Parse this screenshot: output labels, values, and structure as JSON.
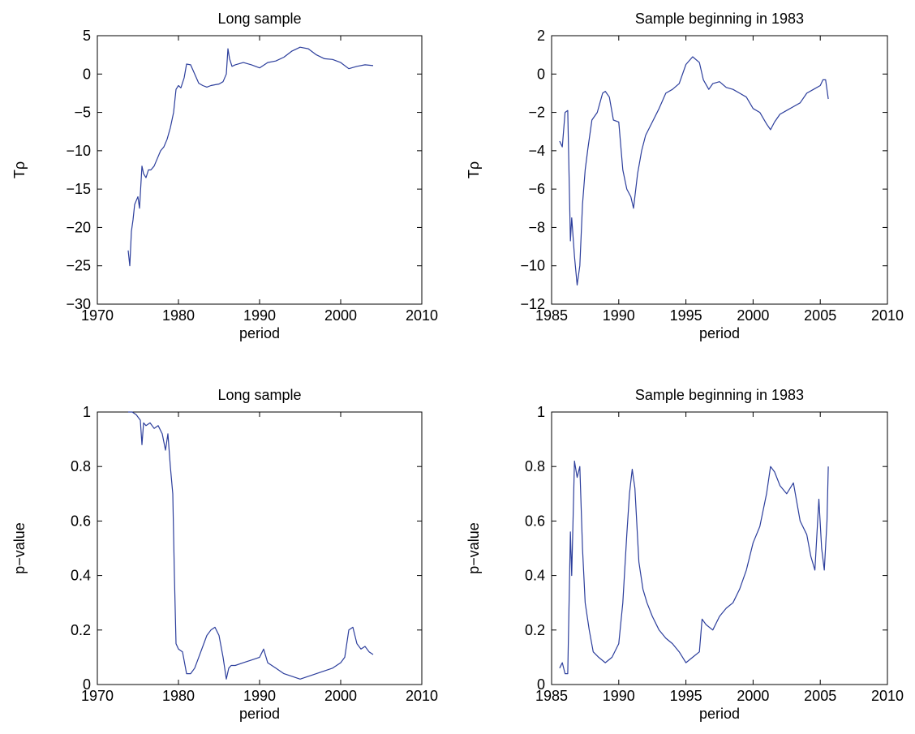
{
  "series_color": "#2c3e9c",
  "chart_data": [
    {
      "type": "line",
      "title": "Long sample",
      "xlabel": "period",
      "ylabel": "Tρ",
      "xlim": [
        1970,
        2010
      ],
      "ylim": [
        -30,
        5
      ],
      "xticks": [
        1970,
        1980,
        1990,
        2000,
        2010
      ],
      "yticks": [
        5,
        0,
        -5,
        -10,
        -15,
        -20,
        -25,
        -30
      ],
      "xtick_labels": [
        "1970",
        "1980",
        "1990",
        "2000",
        "2010"
      ],
      "ytick_labels": [
        "5",
        "0",
        "−5",
        "−10",
        "−15",
        "−20",
        "−25",
        "−30"
      ],
      "series": [
        {
          "x": [
            1973.8,
            1974.0,
            1974.2,
            1974.4,
            1974.6,
            1974.8,
            1975.0,
            1975.2,
            1975.5,
            1975.7,
            1976.0,
            1976.3,
            1976.6,
            1977.0,
            1977.4,
            1977.8,
            1978.2,
            1978.6,
            1979.0,
            1979.4,
            1979.7,
            1980.0,
            1980.3,
            1980.7,
            1981.0,
            1981.5,
            1982.0,
            1982.5,
            1983.0,
            1983.5,
            1984.0,
            1984.5,
            1985.0,
            1985.5,
            1985.9,
            1986.1,
            1986.3,
            1986.6,
            1987.0,
            1988.0,
            1989.0,
            1990.0,
            1991.0,
            1992.0,
            1993.0,
            1994.0,
            1995.0,
            1996.0,
            1997.0,
            1998.0,
            1999.0,
            2000.0,
            2001.0,
            2002.0,
            2003.0,
            2004.0
          ],
          "y": [
            -23,
            -25,
            -20.5,
            -19,
            -17,
            -16.5,
            -16,
            -17.5,
            -12,
            -13,
            -13.5,
            -12.5,
            -12.5,
            -12,
            -11,
            -10,
            -9.5,
            -8.5,
            -7,
            -5,
            -2,
            -1.5,
            -1.8,
            -0.5,
            1.3,
            1.2,
            0,
            -1.2,
            -1.5,
            -1.7,
            -1.5,
            -1.4,
            -1.3,
            -1,
            0,
            3.3,
            2,
            1,
            1.2,
            1.5,
            1.2,
            0.8,
            1.5,
            1.7,
            2.2,
            3,
            3.5,
            3.3,
            2.5,
            2,
            1.9,
            1.5,
            0.7,
            1,
            1.2,
            1.1
          ]
        }
      ]
    },
    {
      "type": "line",
      "title": "Sample beginning in 1983",
      "xlabel": "period",
      "ylabel": "Tρ",
      "xlim": [
        1985,
        2010
      ],
      "ylim": [
        -12,
        2
      ],
      "xticks": [
        1985,
        1990,
        1995,
        2000,
        2005,
        2010
      ],
      "yticks": [
        2,
        0,
        -2,
        -4,
        -6,
        -8,
        -10,
        -12
      ],
      "xtick_labels": [
        "1985",
        "1990",
        "1995",
        "2000",
        "2005",
        "2010"
      ],
      "ytick_labels": [
        "2",
        "0",
        "−2",
        "−4",
        "−6",
        "−8",
        "−10",
        "−12"
      ],
      "series": [
        {
          "x": [
            1985.6,
            1985.8,
            1986.0,
            1986.2,
            1986.4,
            1986.5,
            1986.7,
            1986.9,
            1987.1,
            1987.3,
            1987.5,
            1987.7,
            1988.0,
            1988.4,
            1988.8,
            1989.0,
            1989.3,
            1989.6,
            1990.0,
            1990.3,
            1990.6,
            1990.9,
            1991.1,
            1991.4,
            1991.7,
            1992.0,
            1992.5,
            1993.0,
            1993.5,
            1994.0,
            1994.5,
            1995.0,
            1995.5,
            1996.0,
            1996.3,
            1996.7,
            1997.0,
            1997.5,
            1998.0,
            1998.5,
            1999.0,
            1999.5,
            2000.0,
            2000.5,
            2001.0,
            2001.3,
            2001.6,
            2002.0,
            2002.5,
            2003.0,
            2003.5,
            2004.0,
            2004.5,
            2005.0,
            2005.2,
            2005.4,
            2005.6
          ],
          "y": [
            -3.5,
            -3.8,
            -2,
            -1.9,
            -8.7,
            -7.5,
            -9.5,
            -11,
            -10,
            -6.8,
            -5,
            -3.9,
            -2.4,
            -2,
            -1,
            -0.9,
            -1.2,
            -2.4,
            -2.5,
            -5,
            -6,
            -6.4,
            -7,
            -5.2,
            -4,
            -3.2,
            -2.5,
            -1.8,
            -1,
            -0.8,
            -0.5,
            0.5,
            0.9,
            0.6,
            -0.3,
            -0.8,
            -0.5,
            -0.4,
            -0.7,
            -0.8,
            -1,
            -1.2,
            -1.8,
            -2,
            -2.6,
            -2.9,
            -2.5,
            -2.1,
            -1.9,
            -1.7,
            -1.5,
            -1,
            -0.8,
            -0.6,
            -0.3,
            -0.3,
            -1.3
          ]
        }
      ]
    },
    {
      "type": "line",
      "title": "Long sample",
      "xlabel": "period",
      "ylabel": "p−value",
      "xlim": [
        1970,
        2010
      ],
      "ylim": [
        0,
        1
      ],
      "xticks": [
        1970,
        1980,
        1990,
        2000,
        2010
      ],
      "yticks": [
        1,
        0.8,
        0.6,
        0.4,
        0.2,
        0
      ],
      "xtick_labels": [
        "1970",
        "1980",
        "1990",
        "2000",
        "2010"
      ],
      "ytick_labels": [
        "1",
        "0.8",
        "0.6",
        "0.4",
        "0.2",
        "0"
      ],
      "series": [
        {
          "x": [
            1973.8,
            1974.3,
            1974.8,
            1975.3,
            1975.5,
            1975.7,
            1976.0,
            1976.5,
            1977.0,
            1977.5,
            1978.0,
            1978.4,
            1978.7,
            1979.0,
            1979.3,
            1979.5,
            1979.7,
            1980.0,
            1980.5,
            1981.0,
            1981.5,
            1982.0,
            1982.5,
            1983.0,
            1983.5,
            1984.0,
            1984.5,
            1985.0,
            1985.5,
            1985.9,
            1986.2,
            1986.5,
            1987.0,
            1988.0,
            1989.0,
            1990.0,
            1990.5,
            1991.0,
            1992.0,
            1993.0,
            1994.0,
            1995.0,
            1996.0,
            1997.0,
            1998.0,
            1999.0,
            2000.0,
            2000.5,
            2001.0,
            2001.5,
            2002.0,
            2002.5,
            2003.0,
            2003.5,
            2004.0
          ],
          "y": [
            1.0,
            1.0,
            0.99,
            0.97,
            0.88,
            0.96,
            0.95,
            0.96,
            0.94,
            0.95,
            0.92,
            0.86,
            0.92,
            0.8,
            0.7,
            0.4,
            0.15,
            0.13,
            0.12,
            0.04,
            0.04,
            0.06,
            0.1,
            0.14,
            0.18,
            0.2,
            0.21,
            0.18,
            0.1,
            0.02,
            0.06,
            0.07,
            0.07,
            0.08,
            0.09,
            0.1,
            0.13,
            0.08,
            0.06,
            0.04,
            0.03,
            0.02,
            0.03,
            0.04,
            0.05,
            0.06,
            0.08,
            0.1,
            0.2,
            0.21,
            0.15,
            0.13,
            0.14,
            0.12,
            0.11
          ]
        }
      ]
    },
    {
      "type": "line",
      "title": "Sample beginning in 1983",
      "xlabel": "period",
      "ylabel": "p−value",
      "xlim": [
        1985,
        2010
      ],
      "ylim": [
        0,
        1
      ],
      "xticks": [
        1985,
        1990,
        1995,
        2000,
        2005,
        2010
      ],
      "yticks": [
        1,
        0.8,
        0.6,
        0.4,
        0.2,
        0
      ],
      "xtick_labels": [
        "1985",
        "1990",
        "1995",
        "2000",
        "2005",
        "2010"
      ],
      "ytick_labels": [
        "1",
        "0.8",
        "0.6",
        "0.4",
        "0.2",
        "0"
      ],
      "series": [
        {
          "x": [
            1985.6,
            1985.8,
            1986.0,
            1986.2,
            1986.4,
            1986.5,
            1986.7,
            1986.9,
            1987.1,
            1987.3,
            1987.5,
            1987.8,
            1988.1,
            1988.5,
            1989.0,
            1989.5,
            1990.0,
            1990.3,
            1990.6,
            1990.8,
            1991.0,
            1991.2,
            1991.5,
            1991.8,
            1992.1,
            1992.5,
            1993.0,
            1993.5,
            1994.0,
            1994.5,
            1995.0,
            1995.5,
            1996.0,
            1996.2,
            1996.5,
            1997.0,
            1997.5,
            1998.0,
            1998.5,
            1999.0,
            1999.5,
            2000.0,
            2000.5,
            2001.0,
            2001.3,
            2001.6,
            2002.0,
            2002.5,
            2003.0,
            2003.5,
            2004.0,
            2004.3,
            2004.6,
            2004.9,
            2005.1,
            2005.3,
            2005.5,
            2005.6
          ],
          "y": [
            0.06,
            0.08,
            0.04,
            0.04,
            0.56,
            0.4,
            0.82,
            0.76,
            0.8,
            0.5,
            0.3,
            0.2,
            0.12,
            0.1,
            0.08,
            0.1,
            0.15,
            0.3,
            0.55,
            0.7,
            0.79,
            0.72,
            0.45,
            0.35,
            0.3,
            0.25,
            0.2,
            0.17,
            0.15,
            0.12,
            0.08,
            0.1,
            0.12,
            0.24,
            0.22,
            0.2,
            0.25,
            0.28,
            0.3,
            0.35,
            0.42,
            0.52,
            0.58,
            0.7,
            0.8,
            0.78,
            0.73,
            0.7,
            0.74,
            0.6,
            0.55,
            0.47,
            0.42,
            0.68,
            0.5,
            0.42,
            0.6,
            0.8
          ]
        }
      ]
    }
  ]
}
